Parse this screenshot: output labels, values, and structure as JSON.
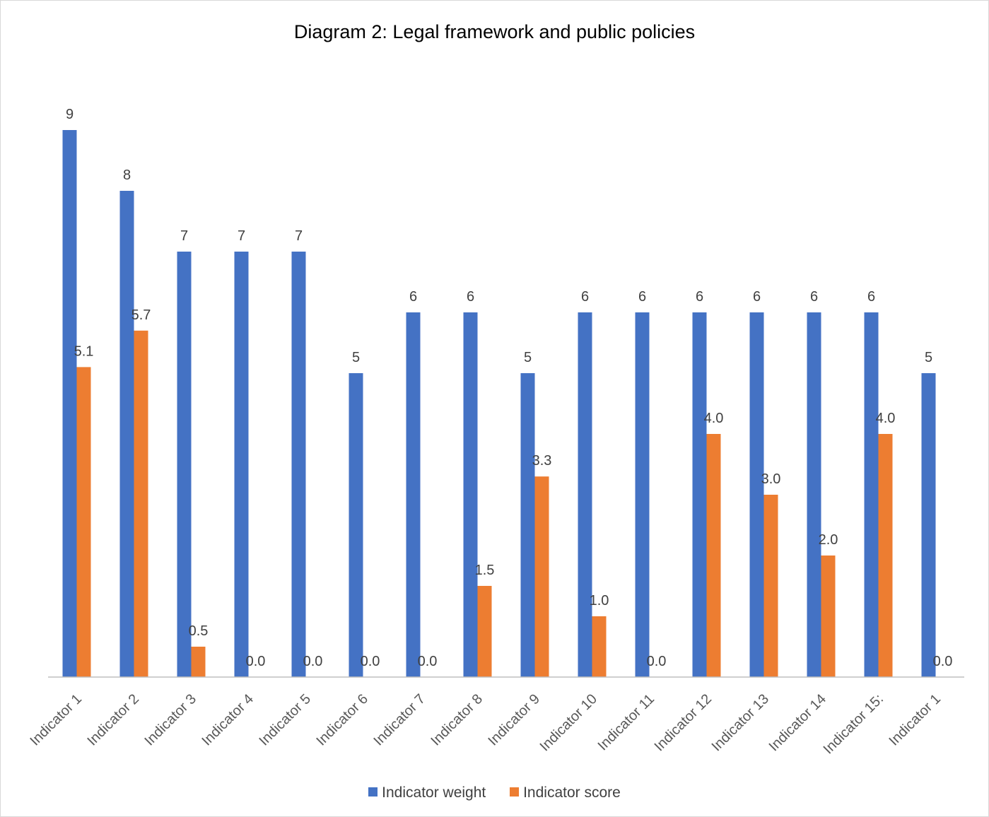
{
  "chart_data": {
    "type": "bar",
    "title": "Diagram 2: Legal framework and public policies",
    "xlabel": "",
    "ylabel": "",
    "categories": [
      "Indicator 1",
      "Indicator 2",
      "Indicator 3",
      "Indicator 4",
      "Indicator 5",
      "Indicator 6",
      "Indicator 7",
      "Indicator 8",
      "Indicator 9",
      "Indicator 10",
      "Indicator 11",
      "Indicator 12",
      "Indicator 13",
      "Indicator 14",
      "Indicator 15:",
      "Indicator 1"
    ],
    "series": [
      {
        "name": "Indicator weight",
        "color": "#4472C4",
        "values": [
          9,
          8,
          7,
          7,
          7,
          5,
          6,
          6,
          5,
          6,
          6,
          6,
          6,
          6,
          6,
          5
        ],
        "labels": [
          "9",
          "8",
          "7",
          "7",
          "7",
          "5",
          "6",
          "6",
          "5",
          "6",
          "6",
          "6",
          "6",
          "6",
          "6",
          "5"
        ]
      },
      {
        "name": "Indicator score",
        "color": "#ED7D31",
        "values": [
          5.1,
          5.7,
          0.5,
          0.0,
          0.0,
          0.0,
          0.0,
          1.5,
          3.3,
          1.0,
          0.0,
          4.0,
          3.0,
          2.0,
          4.0,
          0.0
        ],
        "labels": [
          "5.1",
          "5.7",
          "0.5",
          "0.0",
          "0.0",
          "0.0",
          "0.0",
          "1.5",
          "3.3",
          "1.0",
          "0.0",
          "4.0",
          "3.0",
          "2.0",
          "4.0",
          "0.0"
        ]
      }
    ],
    "ylim": [
      0,
      10
    ],
    "grid": false,
    "legend": "bottom"
  }
}
